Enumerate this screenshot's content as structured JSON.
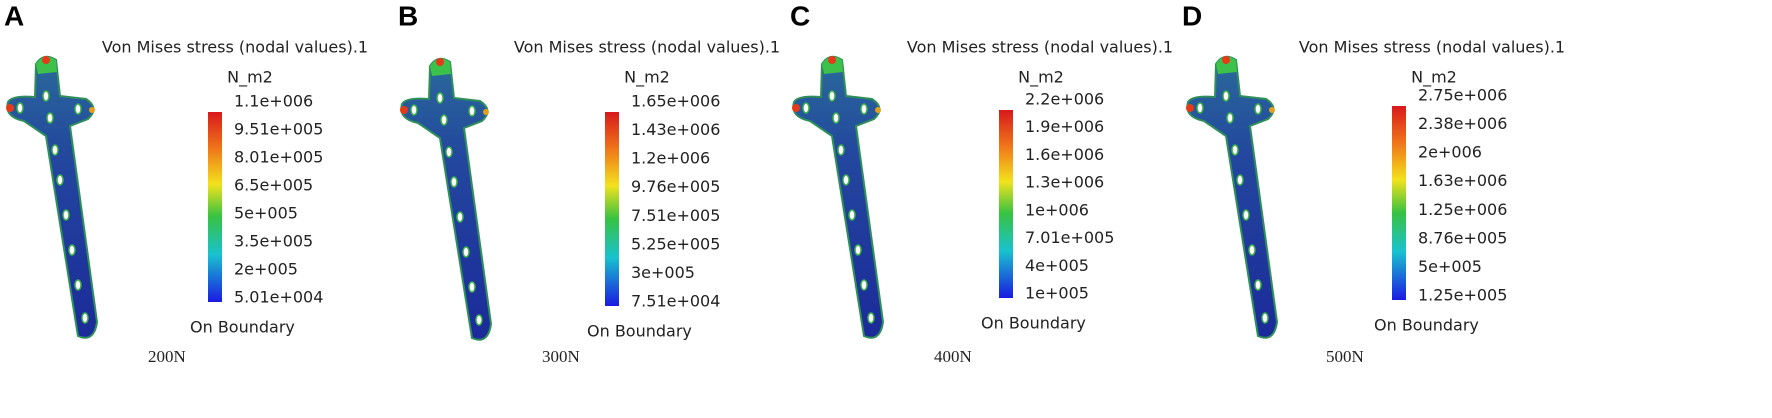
{
  "panels": [
    {
      "letter": "A",
      "title": "Von Mises stress (nodal values).1",
      "unit": "N_m2",
      "scale": [
        "1.1e+006",
        "9.51e+005",
        "8.01e+005",
        "6.5e+005",
        "5e+005",
        "3.5e+005",
        "2e+005",
        "5.01e+004"
      ],
      "footer": "On Boundary",
      "load": "200N"
    },
    {
      "letter": "B",
      "title": "Von Mises stress (nodal values).1",
      "unit": "N_m2",
      "scale": [
        "1.65e+006",
        "1.43e+006",
        "1.2e+006",
        "9.76e+005",
        "7.51e+005",
        "5.25e+005",
        "3e+005",
        "7.51e+004"
      ],
      "footer": "On Boundary",
      "load": "300N"
    },
    {
      "letter": "C",
      "title": "Von Mises stress (nodal values).1",
      "unit": "N_m2",
      "scale": [
        "2.2e+006",
        "1.9e+006",
        "1.6e+006",
        "1.3e+006",
        "1e+006",
        "7.01e+005",
        "4e+005",
        "1e+005"
      ],
      "footer": "On Boundary",
      "load": "400N"
    },
    {
      "letter": "D",
      "title": "Von Mises stress (nodal values).1",
      "unit": "N_m2",
      "scale": [
        "2.75e+006",
        "2.38e+006",
        "2e+006",
        "1.63e+006",
        "1.25e+006",
        "8.76e+005",
        "5e+005",
        "1.25e+005"
      ],
      "footer": "On Boundary",
      "load": "500N"
    }
  ]
}
